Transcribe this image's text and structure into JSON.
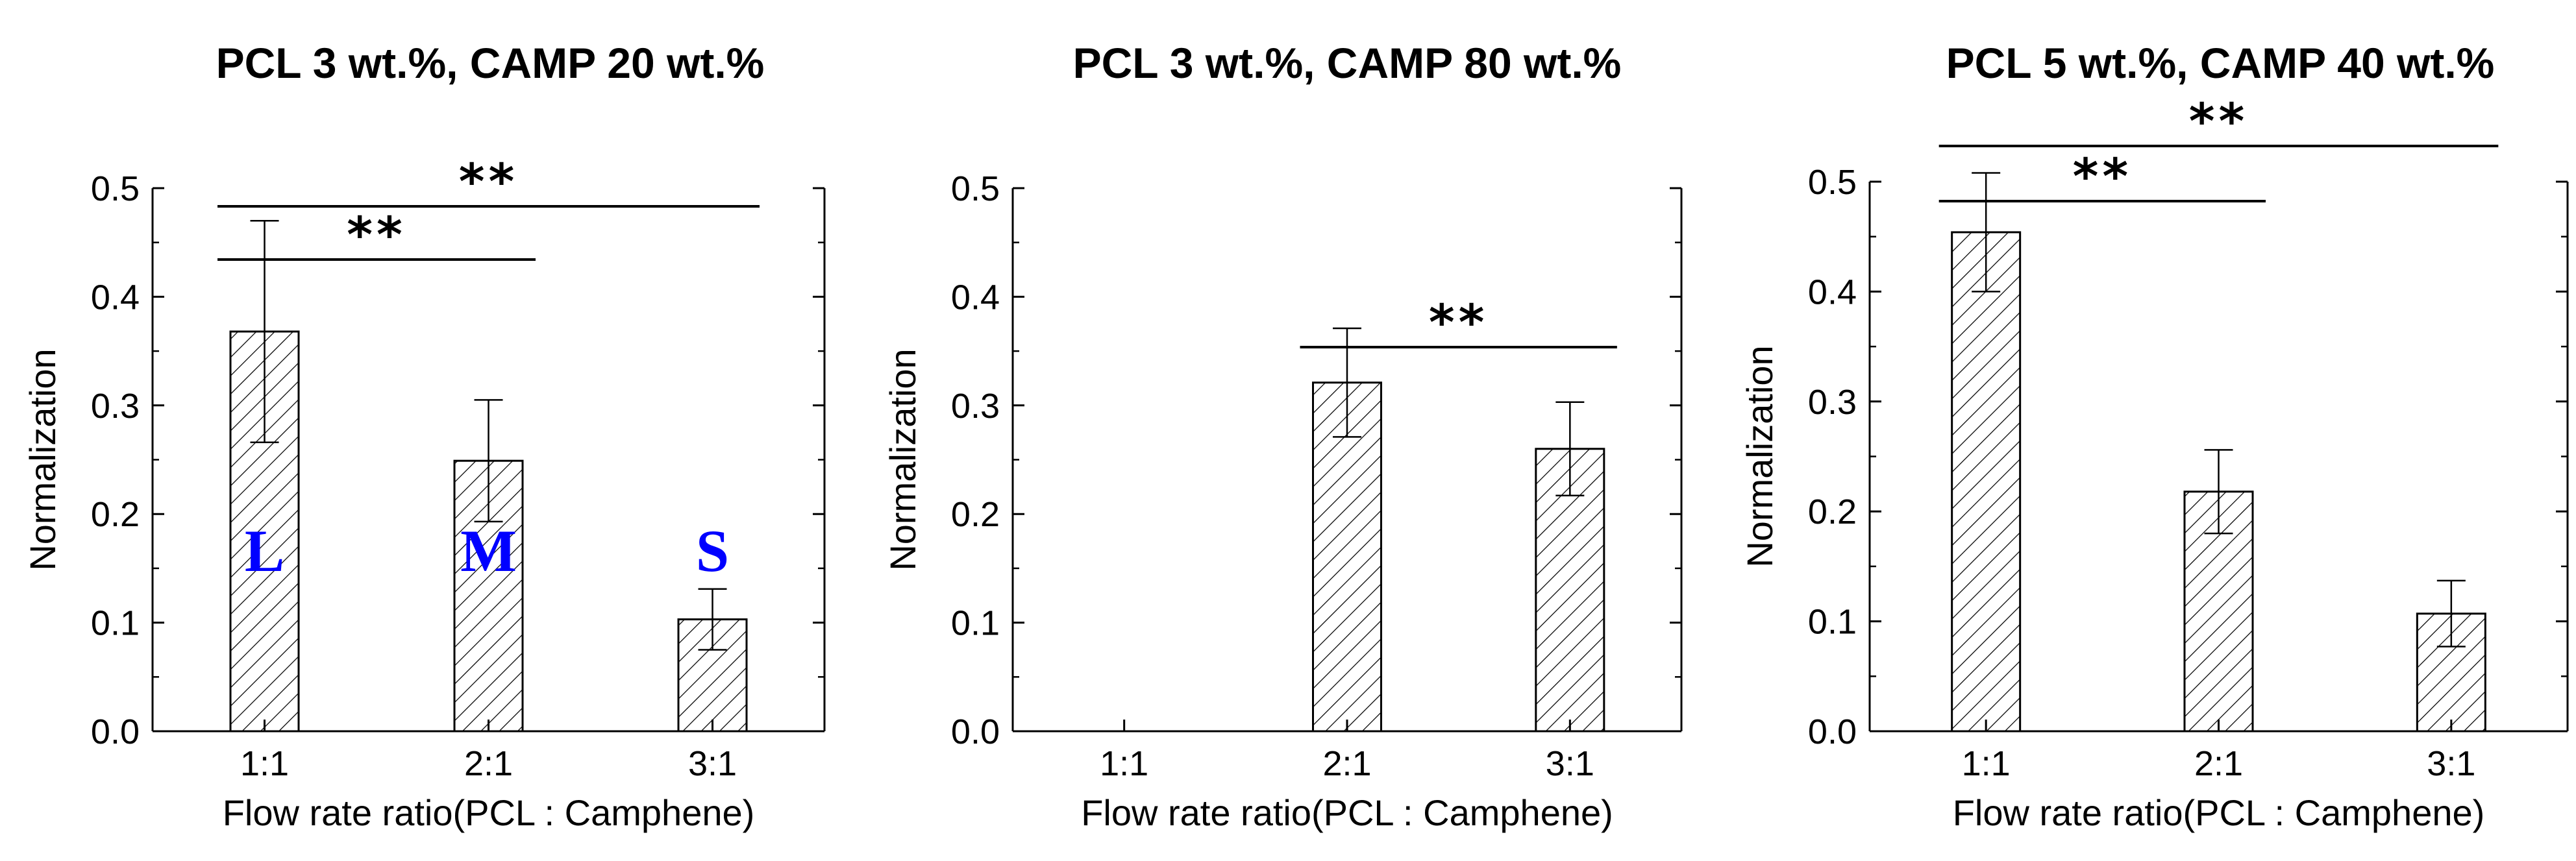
{
  "chart_data": [
    {
      "type": "bar",
      "title": "PCL 3 wt.%, CAMP 20 wt.%",
      "xlabel": "Flow rate ratio(PCL : Camphene)",
      "ylabel": "Normalization",
      "categories": [
        "1:1",
        "2:1",
        "3:1"
      ],
      "values": [
        0.368,
        0.249,
        0.103
      ],
      "errors": [
        0.102,
        0.056,
        0.028
      ],
      "ylim": [
        0.0,
        0.5
      ],
      "yticks": [
        "0.0",
        "0.1",
        "0.2",
        "0.3",
        "0.4",
        "0.5"
      ],
      "bar_labels": [
        "L",
        "M",
        "S"
      ],
      "significance": [
        {
          "from": 0,
          "to": 1,
          "label": "**"
        },
        {
          "from": 0,
          "to": 2,
          "label": "**"
        }
      ]
    },
    {
      "type": "bar",
      "title": "PCL 3 wt.%, CAMP 80 wt.%",
      "xlabel": "Flow rate ratio(PCL : Camphene)",
      "ylabel": "Normalization",
      "categories": [
        "1:1",
        "2:1",
        "3:1"
      ],
      "values": [
        null,
        0.321,
        0.26
      ],
      "errors": [
        null,
        0.05,
        0.043
      ],
      "ylim": [
        0.0,
        0.5
      ],
      "yticks": [
        "0.0",
        "0.1",
        "0.2",
        "0.3",
        "0.4",
        "0.5"
      ],
      "bar_labels": [],
      "significance": [
        {
          "from": 1,
          "to": 2,
          "label": "**"
        }
      ]
    },
    {
      "type": "bar",
      "title": "PCL 5 wt.%, CAMP 40 wt.%",
      "xlabel": "Flow rate ratio(PCL : Camphene)",
      "ylabel": "Normalization",
      "categories": [
        "1:1",
        "2:1",
        "3:1"
      ],
      "values": [
        0.454,
        0.218,
        0.107
      ],
      "errors": [
        0.054,
        0.038,
        0.03
      ],
      "ylim": [
        0.0,
        0.5
      ],
      "yticks": [
        "0.0",
        "0.1",
        "0.2",
        "0.3",
        "0.4",
        "0.5"
      ],
      "bar_labels": [],
      "significance": [
        {
          "from": 0,
          "to": 1,
          "label": "**"
        },
        {
          "from": 0,
          "to": 2,
          "label": "**"
        }
      ]
    }
  ]
}
